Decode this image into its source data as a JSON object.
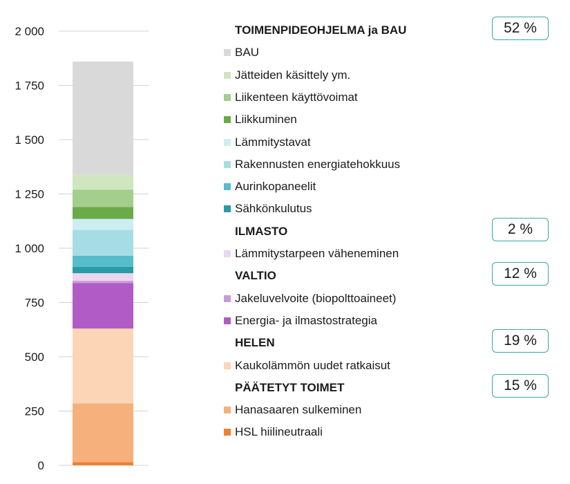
{
  "chart_data": {
    "type": "bar",
    "stacked": true,
    "ylim": [
      0,
      2000
    ],
    "yticks": [
      "0",
      "250",
      "500",
      "750",
      "1 000",
      "1 250",
      "1 500",
      "1 750",
      "2 000"
    ],
    "ytick_values": [
      0,
      250,
      500,
      750,
      1000,
      1250,
      1500,
      1750,
      2000
    ],
    "grid": true,
    "legend_placement": "right",
    "series": [
      {
        "name": "HSL hiilineutraali",
        "value": 15,
        "color": "#f07f2f"
      },
      {
        "name": "Hanasaaren sulkeminen",
        "value": 270,
        "color": "#f6b07c"
      },
      {
        "name": "Kaukolämmön uudet ratkaisut",
        "value": 345,
        "color": "#fbd5b5"
      },
      {
        "name": "Energia- ja ilmastostrategia",
        "value": 210,
        "color": "#b15cc6"
      },
      {
        "name": "Jakeluvelvoite (biopolttoaineet)",
        "value": 10,
        "color": "#c99ad7"
      },
      {
        "name": "Lämmitystarpeen väheneminen",
        "value": 35,
        "color": "#ead6f0"
      },
      {
        "name": "Sähkönkulutus",
        "value": 30,
        "color": "#2a9aa6"
      },
      {
        "name": "Aurinkopaneelit",
        "value": 50,
        "color": "#55bdcb"
      },
      {
        "name": "Rakennusten energiatehokkuus",
        "value": 120,
        "color": "#a6dde4"
      },
      {
        "name": "Lämmitystavat",
        "value": 50,
        "color": "#cceef3"
      },
      {
        "name": "Liikkuminen",
        "value": 55,
        "color": "#6aaa48"
      },
      {
        "name": "Liikenteen käyttövoimat",
        "value": 80,
        "color": "#a3ce8c"
      },
      {
        "name": "Jätteiden käsittely ym.",
        "value": 70,
        "color": "#cfe6c0"
      },
      {
        "name": "BAU",
        "value": 520,
        "color": "#d9d9d9"
      }
    ]
  },
  "legend": {
    "groups": [
      {
        "title": "TOIMENPIDEOHJELMA ja BAU",
        "percent": "52 %",
        "items": [
          {
            "label": "BAU",
            "color": "#d9d9d9"
          },
          {
            "label": "Jätteiden käsittely ym.",
            "color": "#cfe6c0"
          },
          {
            "label": "Liikenteen käyttövoimat",
            "color": "#a3ce8c"
          },
          {
            "label": "Liikkuminen",
            "color": "#6aaa48"
          },
          {
            "label": "Lämmitystavat",
            "color": "#cceef3"
          },
          {
            "label": "Rakennusten energiatehokkuus",
            "color": "#a6dde4"
          },
          {
            "label": "Aurinkopaneelit",
            "color": "#55bdcb"
          },
          {
            "label": "Sähkönkulutus",
            "color": "#2a9aa6"
          }
        ]
      },
      {
        "title": "ILMASTO",
        "percent": "2 %",
        "items": [
          {
            "label": "Lämmitystarpeen väheneminen",
            "color": "#ead6f0"
          }
        ]
      },
      {
        "title": "VALTIO",
        "percent": "12 %",
        "items": [
          {
            "label": "Jakeluvelvoite (biopolttoaineet)",
            "color": "#c99ad7"
          },
          {
            "label": "Energia- ja ilmastostrategia",
            "color": "#b15cc6"
          }
        ]
      },
      {
        "title": "HELEN",
        "percent": "19 %",
        "items": [
          {
            "label": "Kaukolämmön uudet ratkaisut",
            "color": "#fbd5b5"
          }
        ]
      },
      {
        "title": "PÄÄTETYT TOIMET",
        "percent": "15 %",
        "items": [
          {
            "label": "Hanasaaren sulkeminen",
            "color": "#f6b07c"
          },
          {
            "label": "HSL hiilineutraali",
            "color": "#f07f2f"
          }
        ]
      }
    ]
  }
}
